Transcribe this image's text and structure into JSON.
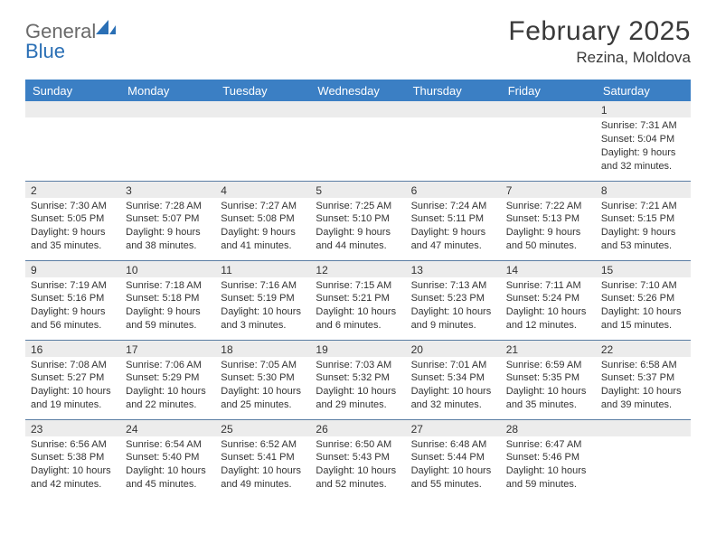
{
  "logo": {
    "text_general": "General",
    "text_blue": "Blue"
  },
  "header": {
    "month": "February 2025",
    "location": "Rezina, Moldova"
  },
  "colors": {
    "header_bg": "#3b7fc4",
    "header_text": "#ffffff",
    "daynum_bg": "#ececec",
    "row_border": "#5a7da3",
    "logo_grey": "#6a6a6a",
    "logo_blue": "#2a6fb5"
  },
  "day_names": [
    "Sunday",
    "Monday",
    "Tuesday",
    "Wednesday",
    "Thursday",
    "Friday",
    "Saturday"
  ],
  "weeks": [
    [
      {
        "num": "",
        "lines": [
          "",
          "",
          "",
          ""
        ]
      },
      {
        "num": "",
        "lines": [
          "",
          "",
          "",
          ""
        ]
      },
      {
        "num": "",
        "lines": [
          "",
          "",
          "",
          ""
        ]
      },
      {
        "num": "",
        "lines": [
          "",
          "",
          "",
          ""
        ]
      },
      {
        "num": "",
        "lines": [
          "",
          "",
          "",
          ""
        ]
      },
      {
        "num": "",
        "lines": [
          "",
          "",
          "",
          ""
        ]
      },
      {
        "num": "1",
        "lines": [
          "Sunrise: 7:31 AM",
          "Sunset: 5:04 PM",
          "Daylight: 9 hours",
          "and 32 minutes."
        ]
      }
    ],
    [
      {
        "num": "2",
        "lines": [
          "Sunrise: 7:30 AM",
          "Sunset: 5:05 PM",
          "Daylight: 9 hours",
          "and 35 minutes."
        ]
      },
      {
        "num": "3",
        "lines": [
          "Sunrise: 7:28 AM",
          "Sunset: 5:07 PM",
          "Daylight: 9 hours",
          "and 38 minutes."
        ]
      },
      {
        "num": "4",
        "lines": [
          "Sunrise: 7:27 AM",
          "Sunset: 5:08 PM",
          "Daylight: 9 hours",
          "and 41 minutes."
        ]
      },
      {
        "num": "5",
        "lines": [
          "Sunrise: 7:25 AM",
          "Sunset: 5:10 PM",
          "Daylight: 9 hours",
          "and 44 minutes."
        ]
      },
      {
        "num": "6",
        "lines": [
          "Sunrise: 7:24 AM",
          "Sunset: 5:11 PM",
          "Daylight: 9 hours",
          "and 47 minutes."
        ]
      },
      {
        "num": "7",
        "lines": [
          "Sunrise: 7:22 AM",
          "Sunset: 5:13 PM",
          "Daylight: 9 hours",
          "and 50 minutes."
        ]
      },
      {
        "num": "8",
        "lines": [
          "Sunrise: 7:21 AM",
          "Sunset: 5:15 PM",
          "Daylight: 9 hours",
          "and 53 minutes."
        ]
      }
    ],
    [
      {
        "num": "9",
        "lines": [
          "Sunrise: 7:19 AM",
          "Sunset: 5:16 PM",
          "Daylight: 9 hours",
          "and 56 minutes."
        ]
      },
      {
        "num": "10",
        "lines": [
          "Sunrise: 7:18 AM",
          "Sunset: 5:18 PM",
          "Daylight: 9 hours",
          "and 59 minutes."
        ]
      },
      {
        "num": "11",
        "lines": [
          "Sunrise: 7:16 AM",
          "Sunset: 5:19 PM",
          "Daylight: 10 hours",
          "and 3 minutes."
        ]
      },
      {
        "num": "12",
        "lines": [
          "Sunrise: 7:15 AM",
          "Sunset: 5:21 PM",
          "Daylight: 10 hours",
          "and 6 minutes."
        ]
      },
      {
        "num": "13",
        "lines": [
          "Sunrise: 7:13 AM",
          "Sunset: 5:23 PM",
          "Daylight: 10 hours",
          "and 9 minutes."
        ]
      },
      {
        "num": "14",
        "lines": [
          "Sunrise: 7:11 AM",
          "Sunset: 5:24 PM",
          "Daylight: 10 hours",
          "and 12 minutes."
        ]
      },
      {
        "num": "15",
        "lines": [
          "Sunrise: 7:10 AM",
          "Sunset: 5:26 PM",
          "Daylight: 10 hours",
          "and 15 minutes."
        ]
      }
    ],
    [
      {
        "num": "16",
        "lines": [
          "Sunrise: 7:08 AM",
          "Sunset: 5:27 PM",
          "Daylight: 10 hours",
          "and 19 minutes."
        ]
      },
      {
        "num": "17",
        "lines": [
          "Sunrise: 7:06 AM",
          "Sunset: 5:29 PM",
          "Daylight: 10 hours",
          "and 22 minutes."
        ]
      },
      {
        "num": "18",
        "lines": [
          "Sunrise: 7:05 AM",
          "Sunset: 5:30 PM",
          "Daylight: 10 hours",
          "and 25 minutes."
        ]
      },
      {
        "num": "19",
        "lines": [
          "Sunrise: 7:03 AM",
          "Sunset: 5:32 PM",
          "Daylight: 10 hours",
          "and 29 minutes."
        ]
      },
      {
        "num": "20",
        "lines": [
          "Sunrise: 7:01 AM",
          "Sunset: 5:34 PM",
          "Daylight: 10 hours",
          "and 32 minutes."
        ]
      },
      {
        "num": "21",
        "lines": [
          "Sunrise: 6:59 AM",
          "Sunset: 5:35 PM",
          "Daylight: 10 hours",
          "and 35 minutes."
        ]
      },
      {
        "num": "22",
        "lines": [
          "Sunrise: 6:58 AM",
          "Sunset: 5:37 PM",
          "Daylight: 10 hours",
          "and 39 minutes."
        ]
      }
    ],
    [
      {
        "num": "23",
        "lines": [
          "Sunrise: 6:56 AM",
          "Sunset: 5:38 PM",
          "Daylight: 10 hours",
          "and 42 minutes."
        ]
      },
      {
        "num": "24",
        "lines": [
          "Sunrise: 6:54 AM",
          "Sunset: 5:40 PM",
          "Daylight: 10 hours",
          "and 45 minutes."
        ]
      },
      {
        "num": "25",
        "lines": [
          "Sunrise: 6:52 AM",
          "Sunset: 5:41 PM",
          "Daylight: 10 hours",
          "and 49 minutes."
        ]
      },
      {
        "num": "26",
        "lines": [
          "Sunrise: 6:50 AM",
          "Sunset: 5:43 PM",
          "Daylight: 10 hours",
          "and 52 minutes."
        ]
      },
      {
        "num": "27",
        "lines": [
          "Sunrise: 6:48 AM",
          "Sunset: 5:44 PM",
          "Daylight: 10 hours",
          "and 55 minutes."
        ]
      },
      {
        "num": "28",
        "lines": [
          "Sunrise: 6:47 AM",
          "Sunset: 5:46 PM",
          "Daylight: 10 hours",
          "and 59 minutes."
        ]
      },
      {
        "num": "",
        "lines": [
          "",
          "",
          "",
          ""
        ]
      }
    ]
  ]
}
